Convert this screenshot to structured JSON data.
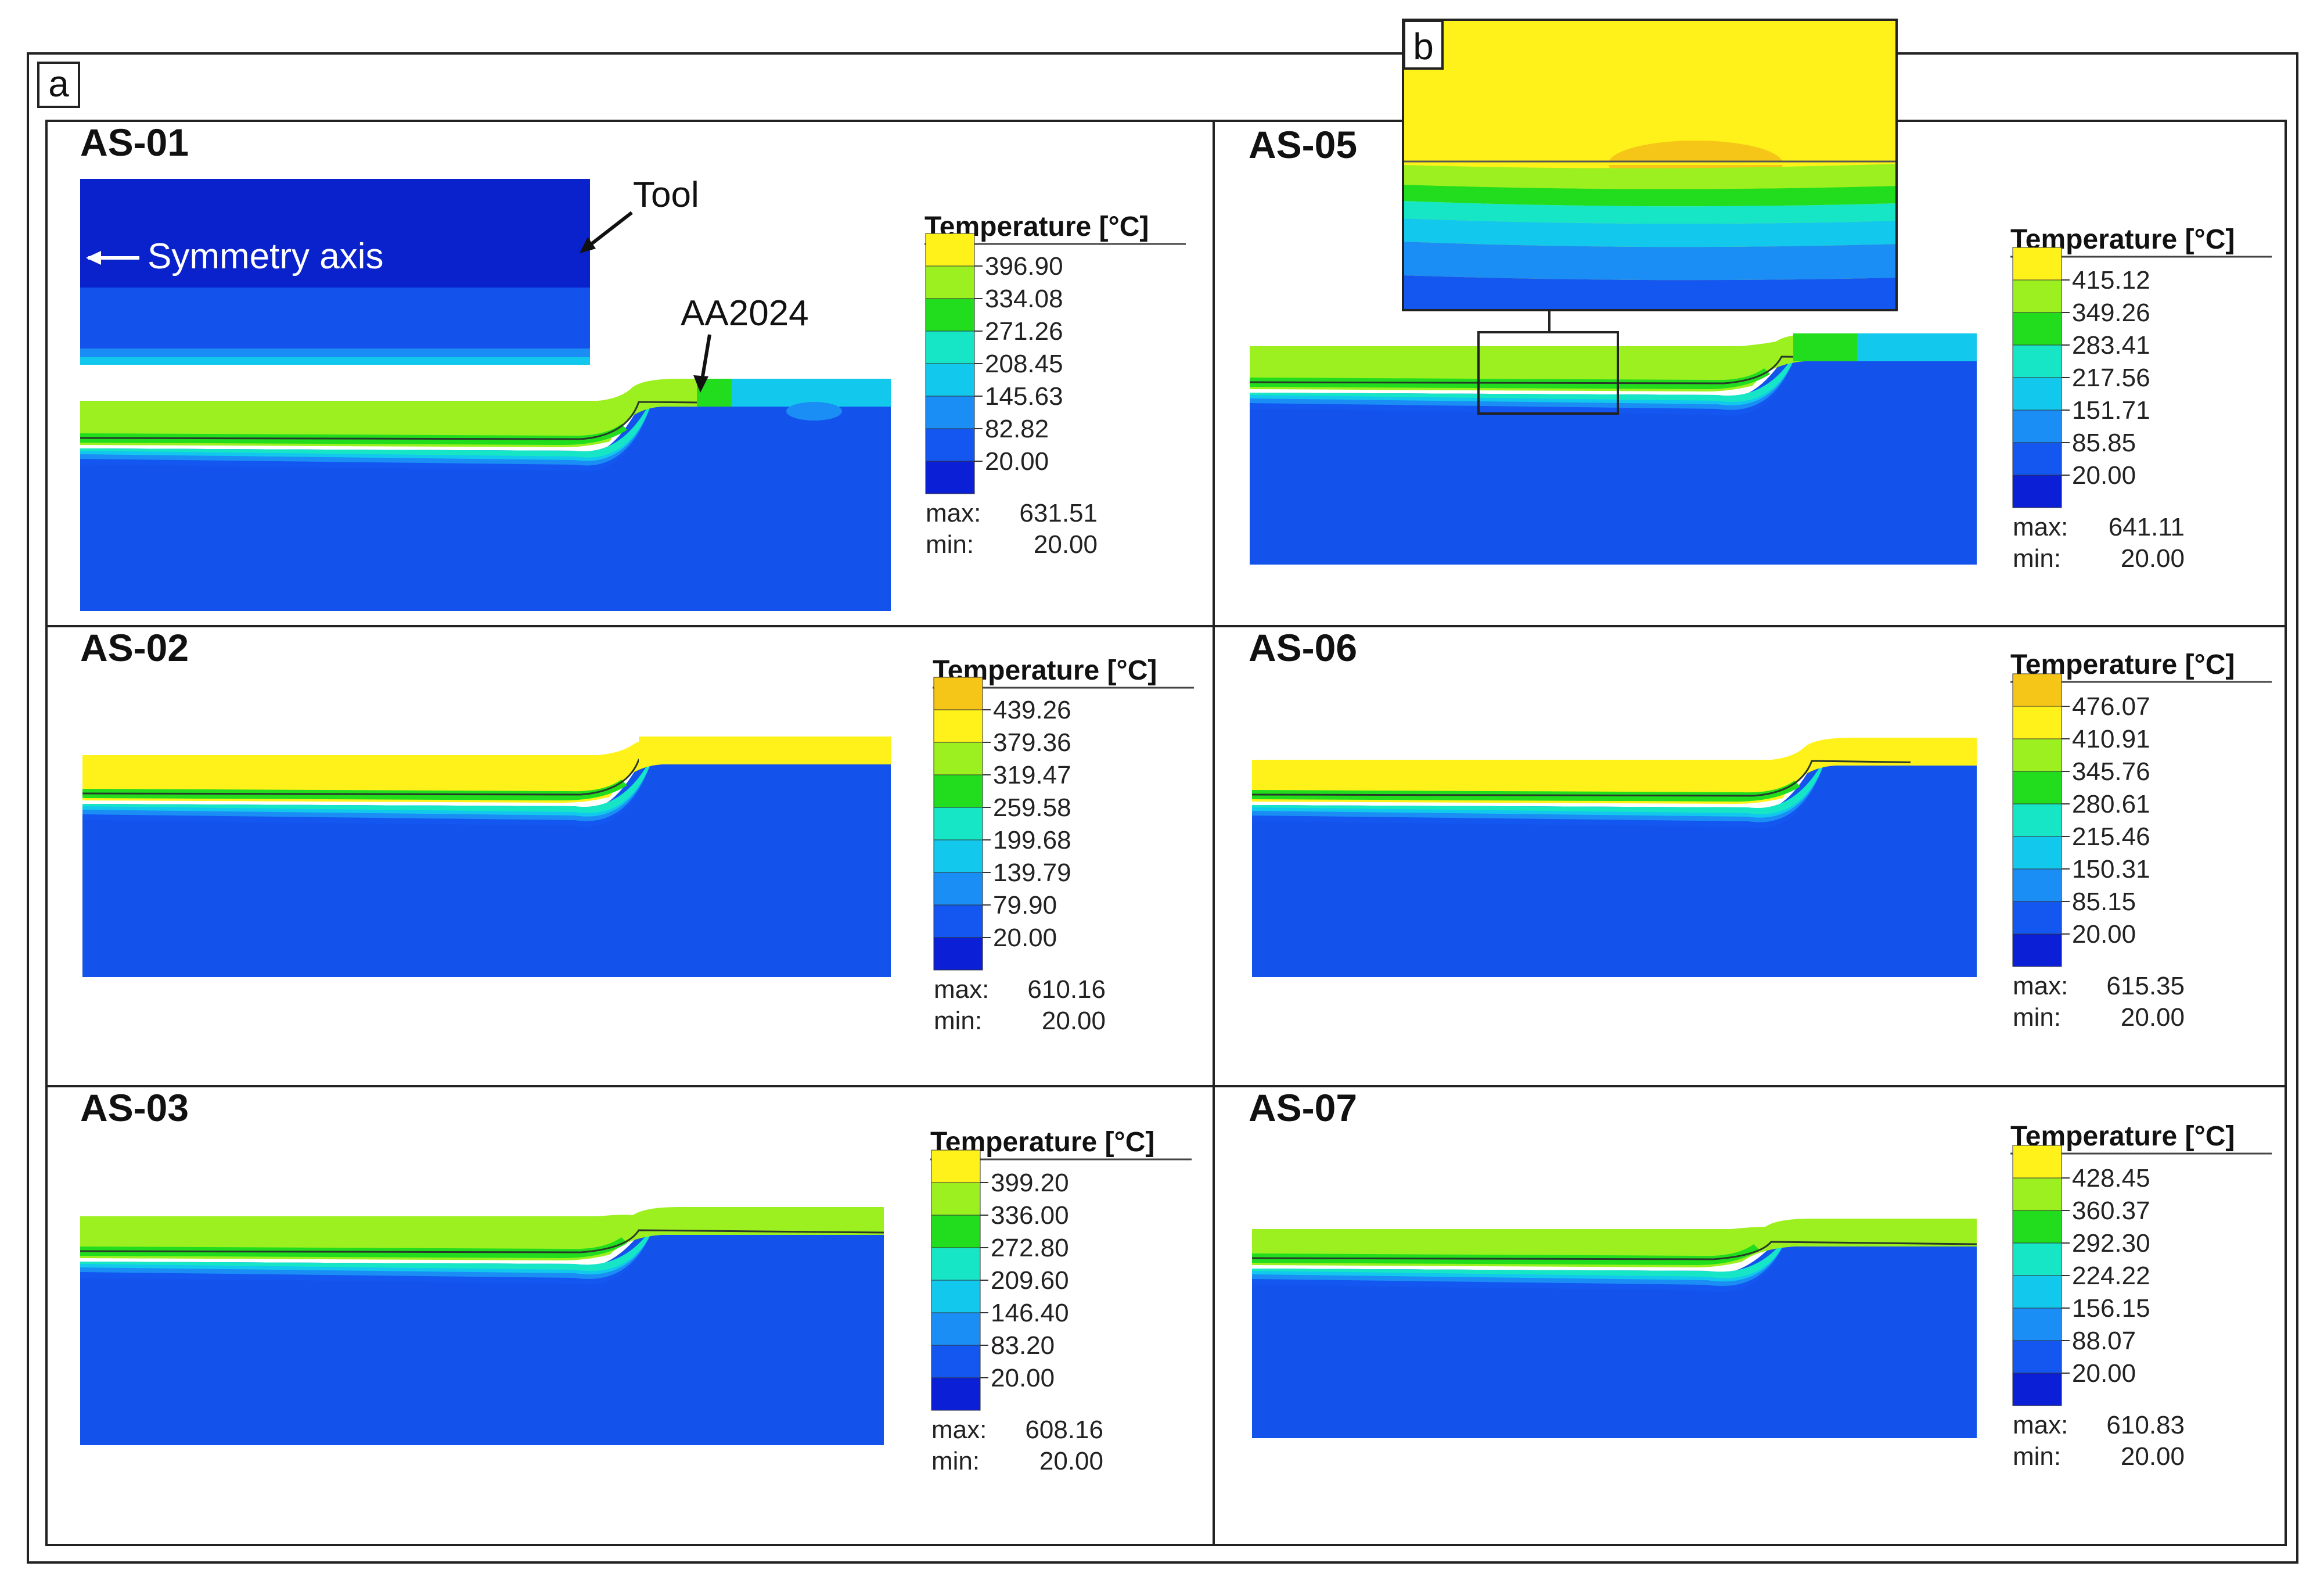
{
  "figure": {
    "label_a": "a",
    "label_b": "b",
    "legend_title": "Temperature [°C]",
    "max_label": "max:",
    "min_label": "min:",
    "annotations": {
      "tool": "Tool",
      "symmetry_axis": "Symmetry axis",
      "material": "AA2024"
    }
  },
  "colors": {
    "level0": "#0a1fd6",
    "level1": "#1456f0",
    "level2": "#1a8ef5",
    "level3": "#12c8ec",
    "level4": "#16e6c6",
    "level5": "#22dd1e",
    "level6": "#9df020",
    "level7": "#fff21a",
    "level8": "#f5c518",
    "tool": "#0a22cc",
    "substrate": "#1452ec"
  },
  "panels": [
    {
      "id": "AS-01",
      "legend_values": [
        "396.90",
        "334.08",
        "271.26",
        "208.45",
        "145.63",
        "82.82",
        "20.00"
      ],
      "max": "631.51",
      "min": "20.00",
      "top_level": 7
    },
    {
      "id": "AS-05",
      "legend_values": [
        "415.12",
        "349.26",
        "283.41",
        "217.56",
        "151.71",
        "85.85",
        "20.00"
      ],
      "max": "641.11",
      "min": "20.00",
      "top_level": 7
    },
    {
      "id": "AS-02",
      "legend_values": [
        "439.26",
        "379.36",
        "319.47",
        "259.58",
        "199.68",
        "139.79",
        "79.90",
        "20.00"
      ],
      "max": "610.16",
      "min": "20.00",
      "top_level": 8
    },
    {
      "id": "AS-06",
      "legend_values": [
        "476.07",
        "410.91",
        "345.76",
        "280.61",
        "215.46",
        "150.31",
        "85.15",
        "20.00"
      ],
      "max": "615.35",
      "min": "20.00",
      "top_level": 8
    },
    {
      "id": "AS-03",
      "legend_values": [
        "399.20",
        "336.00",
        "272.80",
        "209.60",
        "146.40",
        "83.20",
        "20.00"
      ],
      "max": "608.16",
      "min": "20.00",
      "top_level": 7
    },
    {
      "id": "AS-07",
      "legend_values": [
        "428.45",
        "360.37",
        "292.30",
        "224.22",
        "156.15",
        "88.07",
        "20.00"
      ],
      "max": "610.83",
      "min": "20.00",
      "top_level": 7
    }
  ]
}
